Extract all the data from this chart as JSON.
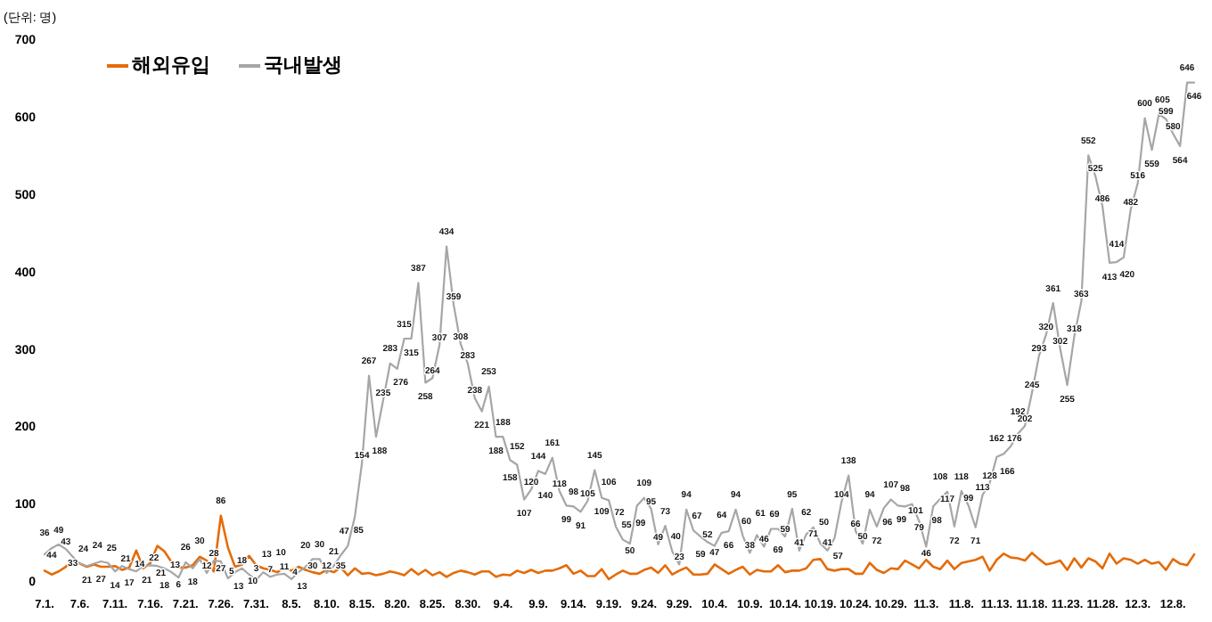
{
  "chart_data": {
    "type": "line",
    "ylabel": "(단위: 명)",
    "categories": [
      "7.1.",
      null,
      null,
      null,
      null,
      "7.6.",
      null,
      null,
      null,
      null,
      "7.11.",
      null,
      null,
      null,
      null,
      "7.16.",
      null,
      null,
      null,
      null,
      "7.21.",
      null,
      null,
      null,
      null,
      "7.26.",
      null,
      null,
      null,
      null,
      "7.31.",
      null,
      null,
      null,
      null,
      "8.5.",
      null,
      null,
      null,
      null,
      "8.10.",
      null,
      null,
      null,
      null,
      "8.15.",
      null,
      null,
      null,
      null,
      "8.20.",
      null,
      null,
      null,
      null,
      "8.25.",
      null,
      null,
      null,
      null,
      "8.30.",
      null,
      null,
      null,
      null,
      "9.4.",
      null,
      null,
      null,
      null,
      "9.9.",
      null,
      null,
      null,
      null,
      "9.14.",
      null,
      null,
      null,
      null,
      "9.19.",
      null,
      null,
      null,
      null,
      "9.24.",
      null,
      null,
      null,
      null,
      "9.29.",
      null,
      null,
      null,
      null,
      "10.4.",
      null,
      null,
      null,
      null,
      "10.9.",
      null,
      null,
      null,
      null,
      "10.14.",
      null,
      null,
      null,
      null,
      "10.19.",
      null,
      null,
      null,
      null,
      "10.24.",
      null,
      null,
      null,
      null,
      "10.29.",
      null,
      null,
      null,
      null,
      "11.3.",
      null,
      null,
      null,
      null,
      "11.8.",
      null,
      null,
      null,
      null,
      "11.13.",
      null,
      null,
      null,
      null,
      "11.18.",
      null,
      null,
      null,
      null,
      "11.23.",
      null,
      null,
      null,
      null,
      "11.28.",
      null,
      null,
      null,
      null,
      "12.3.",
      null,
      null,
      null,
      null,
      "12.8.",
      null,
      null,
      null
    ],
    "series": [
      {
        "name": "해외유입",
        "color": "#e46c0a",
        "value_labels": [
          null,
          null,
          null,
          null,
          null,
          null,
          null,
          null,
          null,
          null,
          null,
          null,
          null,
          null,
          null,
          null,
          null,
          null,
          null,
          null,
          null,
          null,
          null,
          null,
          null,
          "86",
          null,
          null,
          null,
          null,
          null,
          null,
          null,
          null,
          null,
          null,
          null,
          null,
          null,
          null,
          null,
          null,
          null,
          null,
          null,
          null,
          null,
          null,
          null,
          null,
          null,
          null,
          null,
          null,
          null,
          null,
          null,
          null,
          null,
          null,
          null,
          null,
          null,
          null,
          null,
          null,
          null,
          null,
          null,
          null,
          null,
          null,
          null,
          null,
          null,
          null,
          null,
          null,
          null,
          null,
          null,
          null,
          null,
          null,
          null,
          null,
          null,
          null,
          null,
          null,
          null,
          null,
          null,
          null,
          null,
          null,
          null,
          null,
          null,
          null,
          null,
          null,
          null,
          null,
          null,
          null,
          null,
          null,
          null,
          null,
          null,
          null,
          null,
          null,
          null,
          null,
          null,
          null,
          null,
          null,
          null,
          null,
          null,
          null,
          null,
          null,
          null,
          null,
          null,
          null,
          null,
          null,
          null,
          null,
          null,
          null,
          null,
          null,
          null,
          null,
          null,
          null,
          null,
          null,
          null,
          null,
          null,
          null,
          null,
          null,
          null,
          null,
          null,
          null,
          null,
          null,
          null,
          null,
          null,
          null,
          null,
          null,
          null,
          null
        ],
        "values": [
          15,
          10,
          14,
          20,
          28,
          24,
          20,
          23,
          20,
          20,
          21,
          16,
          19,
          41,
          18,
          25,
          47,
          40,
          26,
          19,
          19,
          22,
          33,
          28,
          14,
          86,
          45,
          20,
          23,
          34,
          22,
          18,
          16,
          13,
          19,
          15,
          20,
          16,
          13,
          11,
          16,
          13,
          19,
          9,
          18,
          11,
          12,
          9,
          11,
          14,
          12,
          9,
          17,
          10,
          16,
          9,
          13,
          7,
          12,
          15,
          13,
          10,
          14,
          14,
          7,
          10,
          9,
          15,
          12,
          16,
          12,
          15,
          15,
          18,
          22,
          11,
          15,
          8,
          8,
          17,
          4,
          10,
          15,
          11,
          11,
          16,
          19,
          12,
          22,
          10,
          15,
          19,
          10,
          10,
          11,
          23,
          17,
          11,
          16,
          20,
          10,
          16,
          14,
          14,
          22,
          13,
          15,
          15,
          18,
          29,
          30,
          17,
          15,
          17,
          17,
          11,
          11,
          25,
          16,
          12,
          18,
          17,
          28,
          23,
          18,
          29,
          20,
          17,
          28,
          17,
          25,
          27,
          29,
          33,
          15,
          29,
          37,
          32,
          31,
          28,
          38,
          30,
          23,
          25,
          28,
          16,
          31,
          19,
          31,
          27,
          18,
          37,
          24,
          31,
          29,
          24,
          29,
          24,
          26,
          16,
          30,
          24,
          22,
          36
        ]
      },
      {
        "name": "국내발생",
        "color": "#a6a6a6",
        "value_labels": [
          "36",
          "44",
          "49",
          "43",
          "33",
          "24",
          "21",
          "24",
          "27",
          "25",
          "14",
          "21",
          "17",
          "14",
          "21",
          "22",
          "21",
          "18",
          "13",
          "6",
          "26",
          "18",
          "30",
          "12",
          "28",
          "27",
          "5",
          "13",
          "18",
          "10",
          "3",
          "13",
          "7",
          "10",
          "11",
          "4",
          "13",
          "20",
          "30",
          "30",
          "12",
          "21",
          "35",
          "47",
          "85",
          "154",
          "267",
          "188",
          "235",
          "283",
          "276",
          "315",
          "315",
          "387",
          "258",
          "264",
          "307",
          "434",
          "359",
          "308",
          "283",
          "238",
          "221",
          "253",
          "188",
          "188",
          "158",
          "152",
          "107",
          "120",
          "144",
          "140",
          "161",
          "118",
          "99",
          "98",
          "91",
          "105",
          "145",
          "109",
          "106",
          "72",
          "55",
          "50",
          "99",
          "109",
          "95",
          "49",
          "73",
          "40",
          "23",
          "94",
          "67",
          "59",
          "52",
          "47",
          "64",
          "66",
          "94",
          "60",
          "38",
          "61",
          "46",
          "69",
          "69",
          "59",
          "95",
          "41",
          "62",
          "71",
          "50",
          "41",
          "57",
          "104",
          "138",
          "66",
          "50",
          "94",
          "72",
          "96",
          "107",
          "99",
          "98",
          "101",
          "79",
          "46",
          "98",
          "108",
          "117",
          "72",
          "118",
          "99",
          "71",
          "113",
          "128",
          "162",
          "166",
          "176",
          "192",
          "202",
          "245",
          "293",
          "320",
          "361",
          "302",
          "255",
          "318",
          "363",
          "552",
          "525",
          "486",
          "413",
          "414",
          "420",
          "482",
          "516",
          "600",
          "559",
          "605",
          "599",
          "580",
          "564",
          "646",
          "646"
        ],
        "values": [
          36,
          44,
          49,
          43,
          33,
          24,
          21,
          24,
          27,
          25,
          14,
          21,
          17,
          14,
          21,
          22,
          21,
          18,
          13,
          6,
          26,
          18,
          30,
          12,
          28,
          27,
          5,
          13,
          18,
          10,
          3,
          13,
          7,
          10,
          11,
          4,
          13,
          20,
          30,
          30,
          12,
          21,
          35,
          47,
          85,
          154,
          267,
          188,
          235,
          283,
          276,
          315,
          315,
          387,
          258,
          264,
          307,
          434,
          359,
          308,
          283,
          238,
          221,
          253,
          188,
          188,
          158,
          152,
          107,
          120,
          144,
          140,
          161,
          118,
          99,
          98,
          91,
          105,
          145,
          109,
          106,
          72,
          55,
          50,
          99,
          109,
          95,
          49,
          73,
          40,
          23,
          94,
          67,
          59,
          52,
          47,
          64,
          66,
          94,
          60,
          38,
          61,
          46,
          69,
          69,
          59,
          95,
          41,
          62,
          71,
          50,
          41,
          57,
          104,
          138,
          66,
          50,
          94,
          72,
          96,
          107,
          99,
          98,
          101,
          79,
          46,
          98,
          108,
          117,
          72,
          118,
          99,
          71,
          113,
          128,
          162,
          166,
          176,
          192,
          202,
          245,
          293,
          320,
          361,
          302,
          255,
          318,
          363,
          552,
          525,
          486,
          413,
          414,
          420,
          482,
          516,
          600,
          559,
          605,
          599,
          580,
          564,
          646,
          646
        ]
      }
    ],
    "ylim": [
      0,
      700
    ],
    "yticks": [
      0,
      100,
      200,
      300,
      400,
      500,
      600,
      700
    ],
    "legend": "top left"
  }
}
